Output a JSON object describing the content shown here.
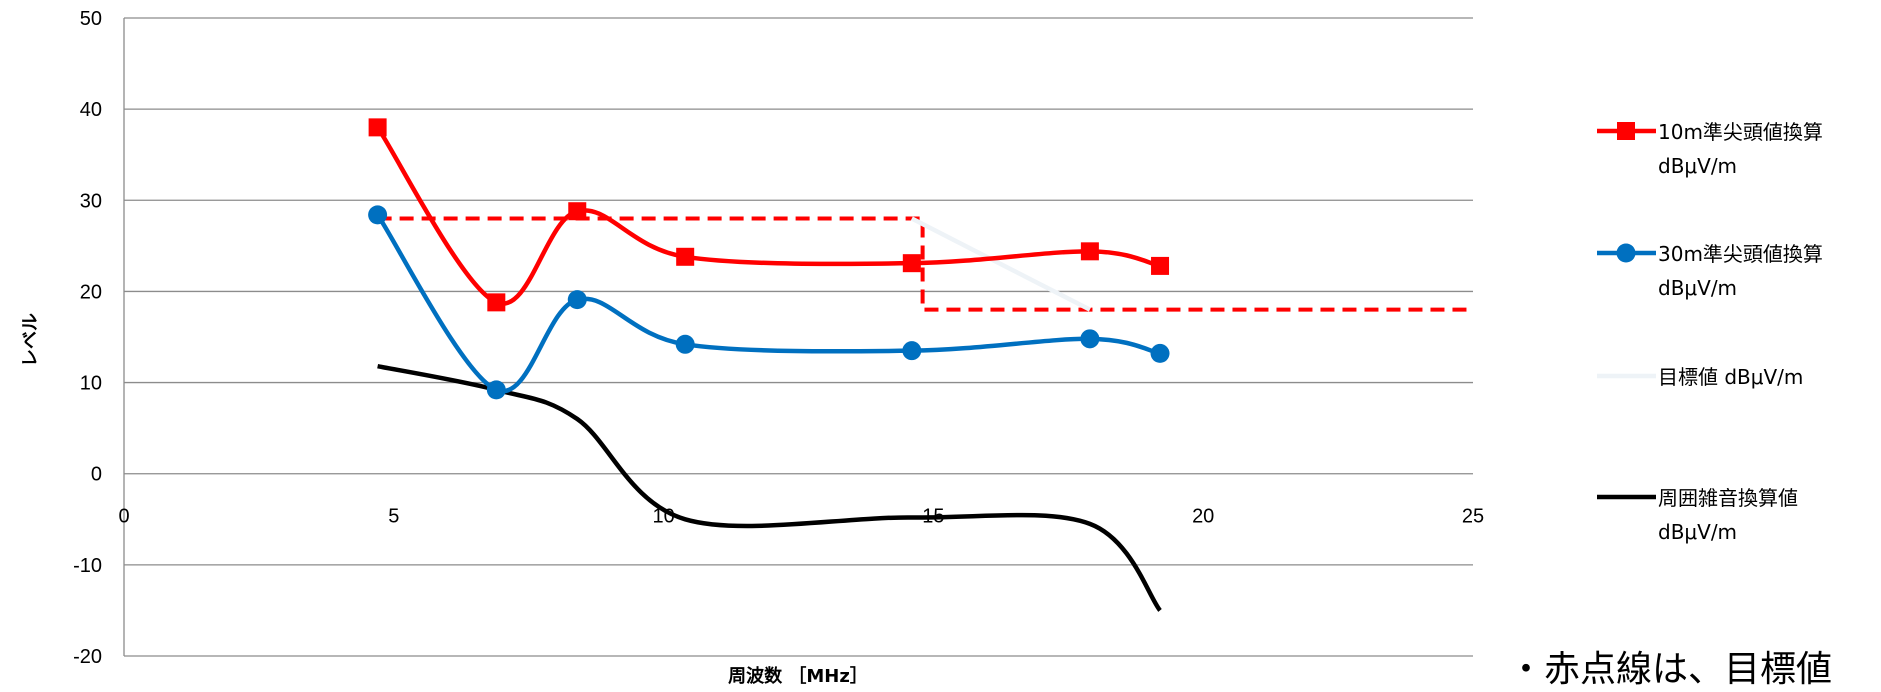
{
  "chart_data": {
    "type": "line",
    "xlabel": "周波数 ［MHz］",
    "ylabel": "レベル",
    "xlim": [
      0,
      25
    ],
    "ylim": [
      -20,
      50
    ],
    "x_ticks": [
      "0",
      "5",
      "10",
      "15",
      "20",
      "25"
    ],
    "y_ticks": [
      "50",
      "40",
      "30",
      "20",
      "10",
      "0",
      "-10",
      "-20"
    ],
    "grid": true,
    "legend_position": "right",
    "series": [
      {
        "name": "10m準尖頭値換算 dBμV/m",
        "legend_lines": [
          "10m準尖頭値換算",
          "dBμV/m"
        ],
        "color": "#ff0000",
        "marker": "square",
        "x": [
          4.7,
          6.9,
          8.4,
          10.4,
          14.6,
          17.9,
          19.2
        ],
        "y": [
          38,
          18.8,
          28.8,
          23.8,
          23.1,
          24.4,
          22.8
        ]
      },
      {
        "name": "30m準尖頭値換算 dBμV/m",
        "legend_lines": [
          "30m準尖頭値換算",
          "dBμV/m"
        ],
        "color": "#0070c0",
        "marker": "circle",
        "x": [
          4.7,
          6.9,
          8.4,
          10.4,
          14.6,
          17.9,
          19.2
        ],
        "y": [
          28.4,
          9.2,
          19.1,
          14.2,
          13.5,
          14.8,
          13.2
        ]
      },
      {
        "name": "目標値 dBμV/m",
        "legend_lines": [
          "目標値 dBμV/m"
        ],
        "color": "#eef3f7",
        "marker": "none",
        "x": [
          14.6,
          17.9
        ],
        "y": [
          28,
          18
        ]
      },
      {
        "name": "周囲雑音換算値 dBμV/m",
        "legend_lines": [
          "周囲雑音換算値",
          "dBμV/m"
        ],
        "color": "#000000",
        "marker": "none",
        "x": [
          4.7,
          6.9,
          8.4,
          10.4,
          14.6,
          17.9,
          19.2
        ],
        "y": [
          11.8,
          9.2,
          6,
          -5,
          -4.8,
          -5.5,
          -15
        ]
      }
    ],
    "target_limit_dashed": {
      "color": "#ff0000",
      "x": [
        4.7,
        14.8,
        14.8,
        25
      ],
      "y": [
        28,
        28,
        18,
        18
      ]
    }
  },
  "note": "・赤点線は、目標値"
}
